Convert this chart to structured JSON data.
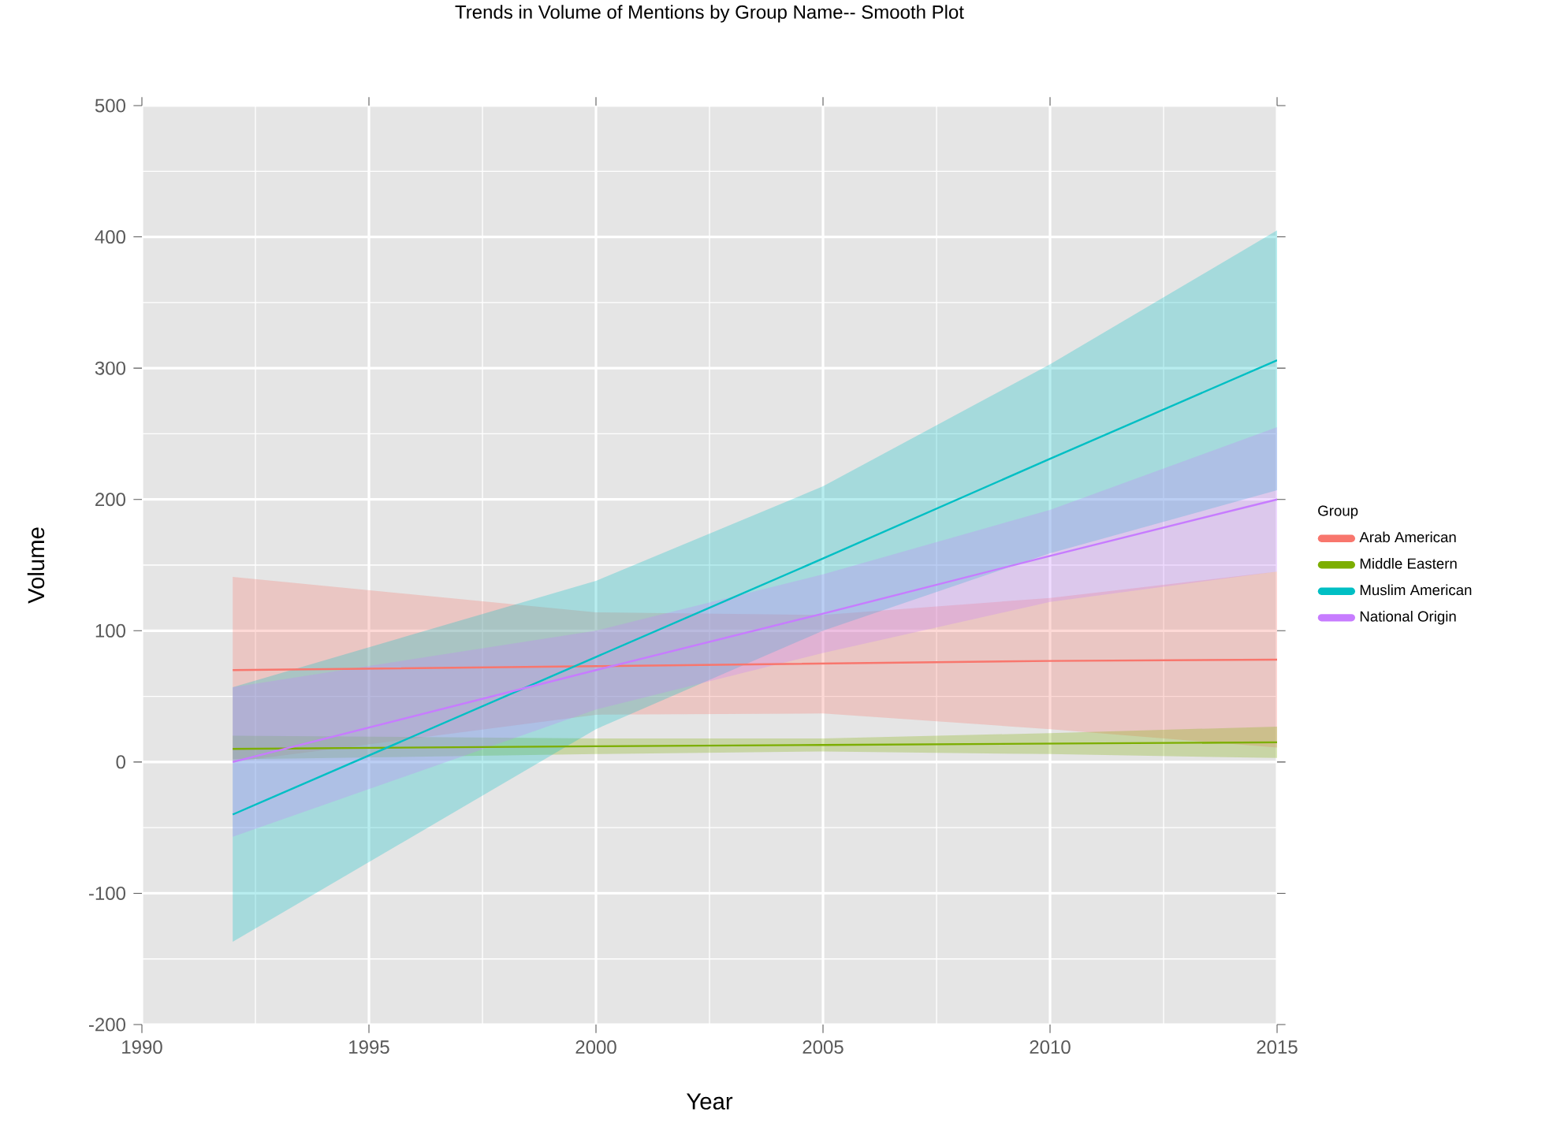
{
  "chart_data": {
    "type": "line",
    "title": "Trends in Volume of Mentions by Group Name-- Smooth Plot",
    "xlabel": "Year",
    "ylabel": "Volume",
    "legend_title": "Group",
    "xlim": [
      1990,
      2015
    ],
    "xticks": [
      1990,
      1995,
      2000,
      2005,
      2010,
      2015
    ],
    "ylim": [
      -200,
      500
    ],
    "yticks": [
      -200,
      -100,
      0,
      100,
      200,
      300,
      400,
      500
    ],
    "grid": true,
    "legend": "right",
    "series": [
      {
        "name": "Arab American",
        "color": "#f8766d",
        "x": [
          1992,
          2000,
          2005,
          2010,
          2015
        ],
        "values": [
          70,
          73,
          75,
          77,
          78
        ],
        "lower": [
          0,
          36,
          37,
          25,
          11
        ],
        "upper": [
          141,
          114,
          112,
          125,
          145
        ]
      },
      {
        "name": "Middle Eastern",
        "color": "#7cae00",
        "x": [
          1992,
          2000,
          2005,
          2010,
          2015
        ],
        "values": [
          10,
          12,
          13,
          14,
          15
        ],
        "lower": [
          2,
          6,
          8,
          6,
          3
        ],
        "upper": [
          20,
          18,
          18,
          22,
          27
        ]
      },
      {
        "name": "Muslim American",
        "color": "#00bfc4",
        "x": [
          1992,
          2000,
          2005,
          2010,
          2015
        ],
        "values": [
          -40,
          80,
          155,
          231,
          306
        ],
        "lower": [
          -137,
          25,
          100,
          159,
          207
        ],
        "upper": [
          57,
          138,
          210,
          303,
          405
        ]
      },
      {
        "name": "National Origin",
        "color": "#c77cff",
        "x": [
          1992,
          2000,
          2005,
          2010,
          2015
        ],
        "values": [
          0,
          70,
          113,
          157,
          200
        ],
        "lower": [
          -57,
          40,
          83,
          122,
          145
        ],
        "upper": [
          57,
          100,
          143,
          192,
          255
        ]
      }
    ]
  }
}
